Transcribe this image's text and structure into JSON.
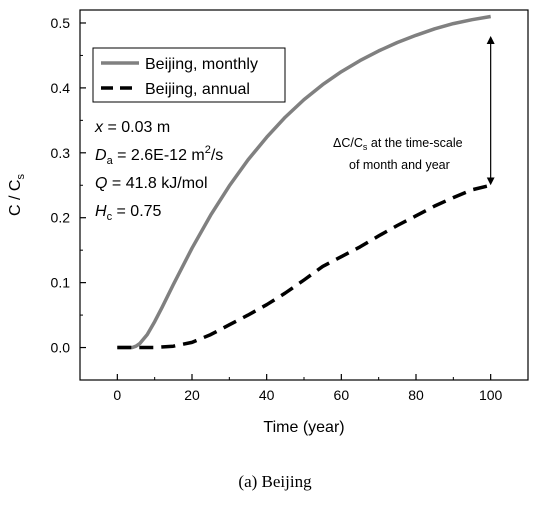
{
  "chart_data": {
    "type": "line",
    "xlabel": "Time (year)",
    "ylabel": {
      "main": "C / C",
      "sub": "s"
    },
    "xlim": [
      -10,
      110
    ],
    "ylim": [
      -0.05,
      0.52
    ],
    "xticks": [
      "0",
      "20",
      "40",
      "60",
      "80",
      "100"
    ],
    "yticks": [
      "0.0",
      "0.1",
      "0.2",
      "0.3",
      "0.4",
      "0.5"
    ],
    "legend_position": "top-left",
    "series": [
      {
        "name": "Beijing, monthly",
        "color": "#808080",
        "style": "solid",
        "x": [
          0,
          2,
          4,
          5,
          6,
          8,
          10,
          12,
          15,
          20,
          25,
          30,
          35,
          40,
          45,
          50,
          55,
          60,
          65,
          70,
          75,
          80,
          85,
          90,
          95,
          100
        ],
        "y": [
          0.0,
          0.0,
          0.0,
          0.002,
          0.006,
          0.02,
          0.04,
          0.062,
          0.097,
          0.153,
          0.204,
          0.249,
          0.289,
          0.324,
          0.355,
          0.382,
          0.405,
          0.425,
          0.442,
          0.457,
          0.47,
          0.481,
          0.491,
          0.499,
          0.505,
          0.51
        ]
      },
      {
        "name": "Beijing, annual",
        "color": "#000000",
        "style": "dashed",
        "x": [
          0,
          5,
          10,
          15,
          20,
          25,
          30,
          35,
          40,
          45,
          50,
          55,
          60,
          65,
          70,
          75,
          80,
          85,
          90,
          95,
          100
        ],
        "y": [
          0.0,
          0.0,
          0.0,
          0.002,
          0.008,
          0.02,
          0.035,
          0.05,
          0.066,
          0.084,
          0.104,
          0.125,
          0.14,
          0.155,
          0.172,
          0.188,
          0.203,
          0.218,
          0.231,
          0.243,
          0.25
        ]
      }
    ],
    "annotation": {
      "line1_pre": "ΔC/C",
      "line1_sub": "s",
      "line1_post": " at the time-scale",
      "line2": "of month and year",
      "arrow_x": 100,
      "arrow_y_top": 0.48,
      "arrow_y_bottom": 0.25
    },
    "parameters": [
      {
        "sym": "x",
        "sub": "",
        "value": " = 0.03 m",
        "sup": "",
        "tail": ""
      },
      {
        "sym": "D",
        "sub": "a",
        "value": " = 2.6E-12 m",
        "sup": "2",
        "tail": "/s"
      },
      {
        "sym": "Q",
        "sub": "",
        "value": " = 41.8 kJ/mol",
        "sup": "",
        "tail": ""
      },
      {
        "sym": "H",
        "sub": "c",
        "value": " = 0.75",
        "sup": "",
        "tail": ""
      }
    ]
  },
  "caption": "(a) Beijing"
}
